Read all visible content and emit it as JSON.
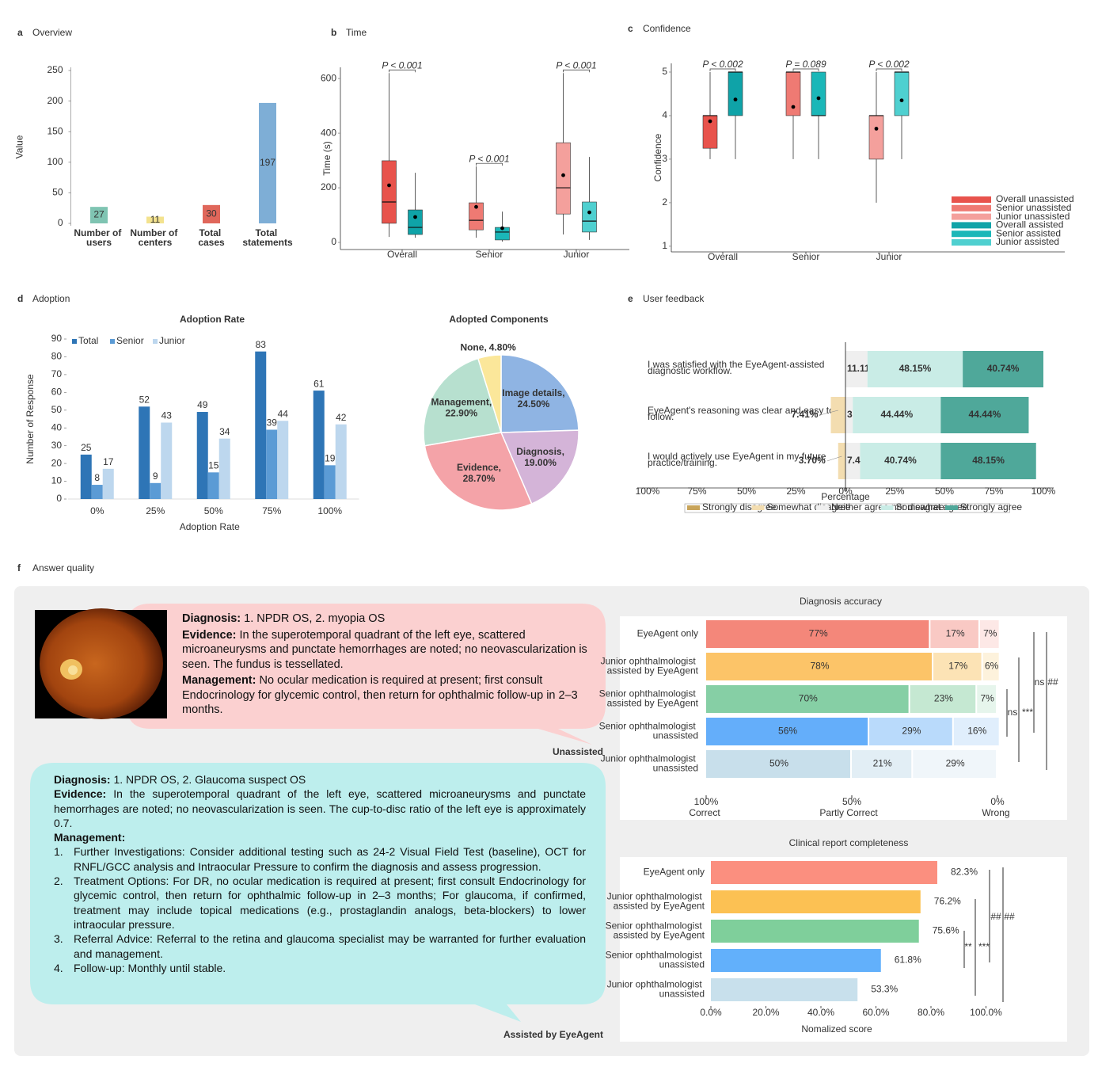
{
  "chart_data": [
    {
      "type": "bar",
      "panel": "a",
      "panel_title": "Overview",
      "ylabel": "Value",
      "categories": [
        "Number of users",
        "Number of centers",
        "Total cases",
        "Total statements"
      ],
      "values": [
        27,
        11,
        30,
        197
      ],
      "colors": [
        "#7fc4b2",
        "#f3e28e",
        "#e0675b",
        "#7eaed6"
      ],
      "ylim": [
        0,
        250
      ],
      "yticks": [
        0,
        50,
        100,
        150,
        200,
        250
      ]
    },
    {
      "type": "box",
      "panel": "b",
      "panel_title": "Time",
      "ylabel": "Time (s)",
      "categories": [
        "Overall",
        "Senior",
        "Junior"
      ],
      "groups": [
        {
          "annotation": "P < 0.001",
          "boxes": [
            {
              "color": "#e8534c",
              "min": 20,
              "q1": 70,
              "median": 148,
              "q3": 299,
              "max": 620,
              "mean": 209
            },
            {
              "color": "#0fa3a8",
              "min": 17,
              "q1": 29,
              "median": 55,
              "q3": 119,
              "max": 255,
              "mean": 93
            }
          ]
        },
        {
          "annotation": "P < 0.001",
          "boxes": [
            {
              "color": "#ef7a73",
              "min": 17,
              "q1": 46,
              "median": 81,
              "q3": 145,
              "max": 278,
              "mean": 130
            },
            {
              "color": "#1bb7b8",
              "min": 3,
              "q1": 9,
              "median": 38,
              "q3": 55,
              "max": 113,
              "mean": 52
            }
          ]
        },
        {
          "annotation": "P < 0.001",
          "boxes": [
            {
              "color": "#f4a09c",
              "min": 29,
              "q1": 104,
              "median": 200,
              "q3": 365,
              "max": 620,
              "mean": 246
            },
            {
              "color": "#4fd0d0",
              "min": 9,
              "q1": 38,
              "median": 78,
              "q3": 148,
              "max": 313,
              "mean": 110
            }
          ]
        }
      ],
      "ylim": [
        -26,
        641
      ],
      "yticks": [
        0,
        200,
        400,
        600
      ]
    },
    {
      "type": "box",
      "panel": "c",
      "panel_title": "Confidence",
      "ylabel": "Confidence",
      "categories": [
        "Overall",
        "Senior",
        "Junior"
      ],
      "groups": [
        {
          "annotation": "P < 0.002",
          "boxes": [
            {
              "name": "Overall unassisted",
              "color": "#e8534c",
              "min": 3,
              "q1": 3.25,
              "median": 4,
              "q3": 4,
              "max": 5,
              "mean": 3.87
            },
            {
              "name": "Overall assisted",
              "color": "#0fa3a8",
              "min": 3,
              "q1": 4,
              "median": 5,
              "q3": 5,
              "max": 5,
              "mean": 4.37
            }
          ]
        },
        {
          "annotation": "P = 0.089",
          "boxes": [
            {
              "name": "Senior unassisted",
              "color": "#ef7a73",
              "min": 3,
              "q1": 4,
              "median": 5,
              "q3": 5,
              "max": 5,
              "mean": 4.2
            },
            {
              "name": "Senior assisted",
              "color": "#1bb7b8",
              "min": 3,
              "q1": 4,
              "median": 4,
              "q3": 5,
              "max": 5,
              "mean": 4.4
            }
          ]
        },
        {
          "annotation": "P < 0.002",
          "boxes": [
            {
              "name": "Junior unassisted",
              "color": "#f4a09c",
              "min": 2,
              "q1": 3,
              "median": 4,
              "q3": 4,
              "max": 5,
              "mean": 3.7
            },
            {
              "name": "Junior assisted",
              "color": "#4fd0d0",
              "min": 3,
              "q1": 4,
              "median": 5,
              "q3": 5,
              "max": 5,
              "mean": 4.35
            }
          ]
        }
      ],
      "ylim": [
        0.87,
        5.2
      ],
      "yticks": [
        1,
        2,
        3,
        4,
        5
      ]
    },
    {
      "type": "grouped-bar",
      "panel": "d",
      "panel_title": "Adoption",
      "title": "Adoption Rate",
      "xlabel": "Adoption Rate",
      "ylabel": "Number of Response",
      "categories": [
        "0%",
        "25%",
        "50%",
        "75%",
        "100%"
      ],
      "series": [
        {
          "name": "Total",
          "color": "#2e75b6",
          "values": [
            25,
            52,
            49,
            83,
            61
          ]
        },
        {
          "name": "Senior",
          "color": "#5b9bd5",
          "values": [
            8,
            9,
            15,
            39,
            19
          ]
        },
        {
          "name": "Junior",
          "color": "#bdd7ee",
          "values": [
            17,
            43,
            34,
            44,
            42
          ]
        }
      ],
      "ylim": [
        0,
        90
      ],
      "yticks": [
        0,
        10,
        20,
        30,
        40,
        50,
        60,
        70,
        80,
        90
      ]
    },
    {
      "type": "pie",
      "title": "Adopted Components",
      "categories": [
        "Image details,",
        "Diagnosis,",
        "Evidence,",
        "Management,",
        "None,"
      ],
      "values": [
        24.5,
        19.0,
        28.7,
        22.9,
        4.8
      ],
      "value_labels": [
        "24.50%",
        "19.00%",
        "28.70%",
        "22.90%",
        "4.80%"
      ],
      "colors": [
        "#8fb4e3",
        "#d4b4d8",
        "#f4a3a8",
        "#b7e0cf",
        "#fbe79a"
      ]
    },
    {
      "type": "diverging-bar",
      "panel": "e",
      "panel_title": "User feedback",
      "xlabel": "Percentage",
      "categories": [
        "I was satisfied with the EyeAgent-assisted diagnostic workflow.",
        "EyeAgent's reasoning was clear and easy to follow.",
        "I would actively use EyeAgent in my future practice/training."
      ],
      "series": [
        {
          "name": "Strongly disagree",
          "color": "#c8a45a",
          "values": [
            0,
            0,
            0
          ],
          "value_labels": [
            null,
            null,
            null
          ]
        },
        {
          "name": "Somewhat disagree",
          "color": "#f3ddb0",
          "values": [
            0,
            7.41,
            3.7
          ],
          "value_labels": [
            null,
            "7.41%",
            "3.70%"
          ]
        },
        {
          "name": "Neither agree nor disagree",
          "color": "#efefef",
          "values": [
            11.11,
            3.7,
            7.41
          ],
          "value_labels": [
            "11.11%",
            "3.70%",
            "7.41%"
          ]
        },
        {
          "name": "Somewhat agree",
          "color": "#c9ece6",
          "values": [
            48.15,
            44.44,
            40.74
          ],
          "value_labels": [
            "48.15%",
            "44.44%",
            "40.74%"
          ]
        },
        {
          "name": "Strongly agree",
          "color": "#4fa89a",
          "values": [
            40.74,
            44.44,
            48.15
          ],
          "value_labels": [
            "40.74%",
            "44.44%",
            "48.15%"
          ]
        }
      ],
      "xlim": [
        -100,
        100
      ],
      "xticks": [
        {
          "value": -100,
          "label": "100%"
        },
        {
          "value": -75,
          "label": "75%"
        },
        {
          "value": -50,
          "label": "50%"
        },
        {
          "value": -25,
          "label": "25%"
        },
        {
          "value": 0,
          "label": "0%"
        },
        {
          "value": 25,
          "label": "25%"
        },
        {
          "value": 50,
          "label": "50%"
        },
        {
          "value": 75,
          "label": "75%"
        },
        {
          "value": 100,
          "label": "100%"
        }
      ]
    },
    {
      "type": "stacked-barh",
      "title": "Diagnosis accuracy",
      "categories": [
        "EyeAgent only",
        "Junior ophthalmologist assisted by EyeAgent",
        "Senior ophthalmologist assisted by EyeAgent",
        "Senior ophthalmologist unassisted",
        "Junior ophthalmologist unassisted"
      ],
      "series": [
        {
          "name": "Correct",
          "colors": [
            "#f4877a",
            "#fcc468",
            "#86cfa5",
            "#64aefa",
            "#c8dfeb"
          ],
          "values": [
            77,
            78,
            70,
            56,
            50
          ],
          "value_labels": [
            "77%",
            "78%",
            "70%",
            "56%",
            "50%"
          ]
        },
        {
          "name": "Partly Correct",
          "colors": [
            "#f9c9c4",
            "#fce3b5",
            "#c5e8d2",
            "#b9dafb",
            "#e2eef5"
          ],
          "values": [
            17,
            17,
            23,
            29,
            21
          ],
          "value_labels": [
            "17%",
            "17%",
            "23%",
            "29%",
            "21%"
          ]
        },
        {
          "name": "Wrong",
          "colors": [
            "#fde8e6",
            "#fdf2dc",
            "#e6f5ec",
            "#e0eefc",
            "#f0f6fa"
          ],
          "values": [
            7,
            6,
            7,
            16,
            29
          ],
          "value_labels": [
            "7%",
            "6%",
            "7%",
            "16%",
            "29%"
          ]
        }
      ],
      "xlim": [
        100,
        0
      ],
      "xticks": [
        {
          "value": 100,
          "label": "100%"
        },
        {
          "value": 50,
          "label": "50%"
        },
        {
          "value": 0,
          "label": "0%"
        }
      ],
      "annotations": [
        "ns",
        "***",
        "ns",
        "##"
      ]
    },
    {
      "type": "barh",
      "title": "Clinical report completeness",
      "xlabel": "Nomalized score",
      "categories": [
        "EyeAgent only",
        "Junior ophthalmologist assisted by EyeAgent",
        "Senior ophthalmologist assisted by EyeAgent",
        "Senior ophthalmologist unassisted",
        "Junior ophthalmologist unassisted"
      ],
      "values": [
        82.3,
        76.2,
        75.6,
        61.8,
        53.3
      ],
      "value_labels": [
        "82.3%",
        "76.2%",
        "75.6%",
        "61.8%",
        "53.3%"
      ],
      "colors": [
        "#fb8f7f",
        "#fcc153",
        "#7fcf9b",
        "#62b0fb",
        "#c8e0ec"
      ],
      "xlim": [
        0,
        100
      ],
      "xticks": [
        {
          "value": 0,
          "label": "0.0%"
        },
        {
          "value": 20,
          "label": "20.0%"
        },
        {
          "value": 40,
          "label": "40.0%"
        },
        {
          "value": 60,
          "label": "60.0%"
        },
        {
          "value": 80,
          "label": "80.0%"
        },
        {
          "value": 100,
          "label": "100.0%"
        }
      ],
      "annotations": [
        "**",
        "***",
        "##",
        "##"
      ]
    }
  ],
  "answer_quality": {
    "panel": "f",
    "panel_title": "Answer quality",
    "unassisted": {
      "label": "Unassisted",
      "diagnosis": {
        "key": "Diagnosis:",
        "text": "1. NPDR OS, 2. myopia OS"
      },
      "evidence": {
        "key": "Evidence:",
        "text": "In the superotemporal quadrant of the left eye, scattered microaneurysms and punctate hemorrhages are noted; no neovascularization is seen. The fundus is tessellated."
      },
      "management": {
        "key": "Management:",
        "text": "No ocular medication is required at present; first consult Endocrinology for glycemic control, then return for ophthalmic follow-up in 2–3 months."
      }
    },
    "assisted": {
      "label": "Assisted by EyeAgent",
      "diagnosis": {
        "key": "Diagnosis:",
        "text": "1. NPDR OS, 2. Glaucoma suspect OS"
      },
      "evidence": {
        "key": "Evidence:",
        "text": "In the superotemporal quadrant of the left eye, scattered microaneurysms and punctate hemorrhages are noted; no neovascularization is seen. The cup-to-disc ratio of the left eye is approximately 0.7."
      },
      "management": {
        "key": "Management:",
        "items": [
          {
            "number": "1.",
            "text": "Further Investigations: Consider additional testing such as 24-2 Visual Field Test (baseline), OCT for RNFL/GCC analysis and Intraocular Pressure to confirm the diagnosis and assess progression."
          },
          {
            "number": "2.",
            "text": "Treatment Options: For DR, no ocular medication is required at present; first consult Endocrinology for glycemic control, then return for ophthalmic follow-up in 2–3 months; For glaucoma, if confirmed, treatment may include topical medications (e.g., prostaglandin analogs, beta-blockers) to lower intraocular pressure."
          },
          {
            "number": "3.",
            "text": "Referral Advice: Referral to the retina and glaucoma specialist may be warranted for further evaluation and management."
          },
          {
            "number": "4.",
            "text": "Follow-up: Monthly until stable."
          }
        ]
      }
    }
  }
}
